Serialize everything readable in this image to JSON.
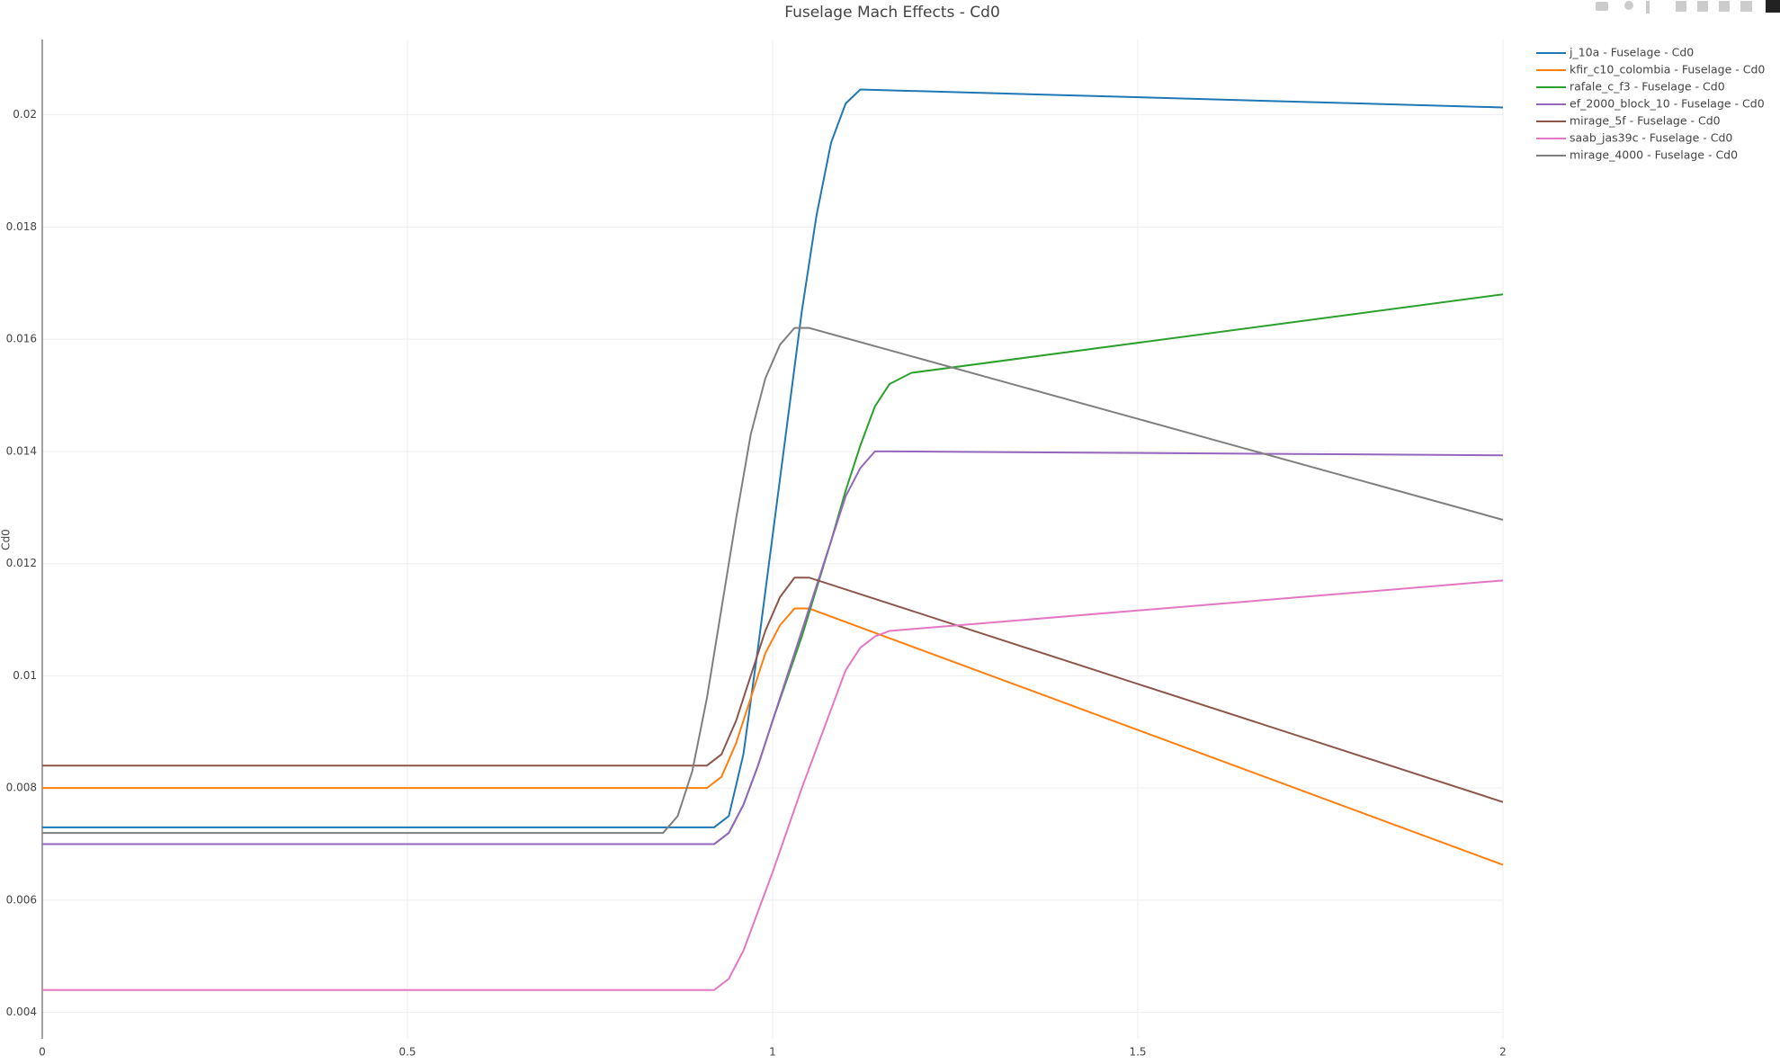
{
  "chart_data": {
    "type": "line",
    "title": "Fuselage Mach Effects - Cd0",
    "y_label": "Cd0",
    "xlim": [
      0,
      2
    ],
    "xticks": [
      0,
      0.5,
      1,
      1.5,
      2
    ],
    "ylim": [
      0.00353,
      0.02134
    ],
    "yticks": [
      0.004,
      0.006,
      0.008,
      0.01,
      0.012,
      0.014,
      0.016,
      0.018,
      0.02
    ],
    "grid": true,
    "legend": "right",
    "series": [
      {
        "name": "j_10a - Fuselage - Cd0",
        "color": "#1f77b4",
        "x": [
          0,
          0.92,
          0.94,
          0.96,
          0.98,
          1.0,
          1.02,
          1.04,
          1.06,
          1.08,
          1.1,
          1.12,
          2
        ],
        "values": [
          0.0073,
          0.0073,
          0.0075,
          0.0086,
          0.0105,
          0.0125,
          0.0145,
          0.0165,
          0.0182,
          0.0195,
          0.0202,
          0.02045,
          0.02013
        ]
      },
      {
        "name": "kfir_c10_colombia - Fuselage - Cd0",
        "color": "#ff7f0e",
        "x": [
          0,
          0.91,
          0.93,
          0.95,
          0.97,
          0.99,
          1.01,
          1.03,
          1.05,
          2
        ],
        "values": [
          0.008,
          0.008,
          0.0082,
          0.0088,
          0.0096,
          0.0104,
          0.0109,
          0.0112,
          0.0112,
          0.00663
        ]
      },
      {
        "name": "rafale_c_f3 - Fuselage - Cd0",
        "color": "#2ca02c",
        "x": [
          0,
          0.92,
          0.94,
          0.96,
          0.98,
          1.0,
          1.04,
          1.08,
          1.1,
          1.12,
          1.14,
          1.16,
          1.19,
          2
        ],
        "values": [
          0.007,
          0.007,
          0.0072,
          0.0077,
          0.0084,
          0.0092,
          0.0107,
          0.0124,
          0.0133,
          0.0141,
          0.0148,
          0.0152,
          0.0154,
          0.0168
        ]
      },
      {
        "name": "ef_2000_block_10 - Fuselage - Cd0",
        "color": "#9467bd",
        "x": [
          0,
          0.92,
          0.94,
          0.96,
          0.98,
          1.0,
          1.04,
          1.08,
          1.1,
          1.12,
          1.14,
          1.16,
          2
        ],
        "values": [
          0.007,
          0.007,
          0.0072,
          0.0077,
          0.0084,
          0.0092,
          0.0108,
          0.0124,
          0.0132,
          0.0137,
          0.014,
          0.014,
          0.01393
        ]
      },
      {
        "name": "mirage_5f - Fuselage - Cd0",
        "color": "#8c564b",
        "x": [
          0,
          0.91,
          0.93,
          0.95,
          0.97,
          0.99,
          1.01,
          1.03,
          1.05,
          2
        ],
        "values": [
          0.0084,
          0.0084,
          0.0086,
          0.0092,
          0.01,
          0.0108,
          0.0114,
          0.01175,
          0.01175,
          0.00775
        ]
      },
      {
        "name": "saab_jas39c - Fuselage - Cd0",
        "color": "#e377c2",
        "x": [
          0,
          0.92,
          0.94,
          0.96,
          0.98,
          1.0,
          1.04,
          1.08,
          1.1,
          1.12,
          1.14,
          1.16,
          2
        ],
        "values": [
          0.0044,
          0.0044,
          0.0046,
          0.0051,
          0.0058,
          0.0065,
          0.008,
          0.0094,
          0.0101,
          0.0105,
          0.0107,
          0.0108,
          0.0117
        ]
      },
      {
        "name": "mirage_4000 - Fuselage - Cd0",
        "color": "#7f7f7f",
        "x": [
          0,
          0.85,
          0.87,
          0.89,
          0.91,
          0.93,
          0.95,
          0.97,
          0.99,
          1.01,
          1.03,
          1.05,
          2
        ],
        "values": [
          0.0072,
          0.0072,
          0.0075,
          0.0083,
          0.0096,
          0.0112,
          0.0128,
          0.0143,
          0.0153,
          0.0159,
          0.0162,
          0.0162,
          0.01278
        ]
      }
    ]
  }
}
